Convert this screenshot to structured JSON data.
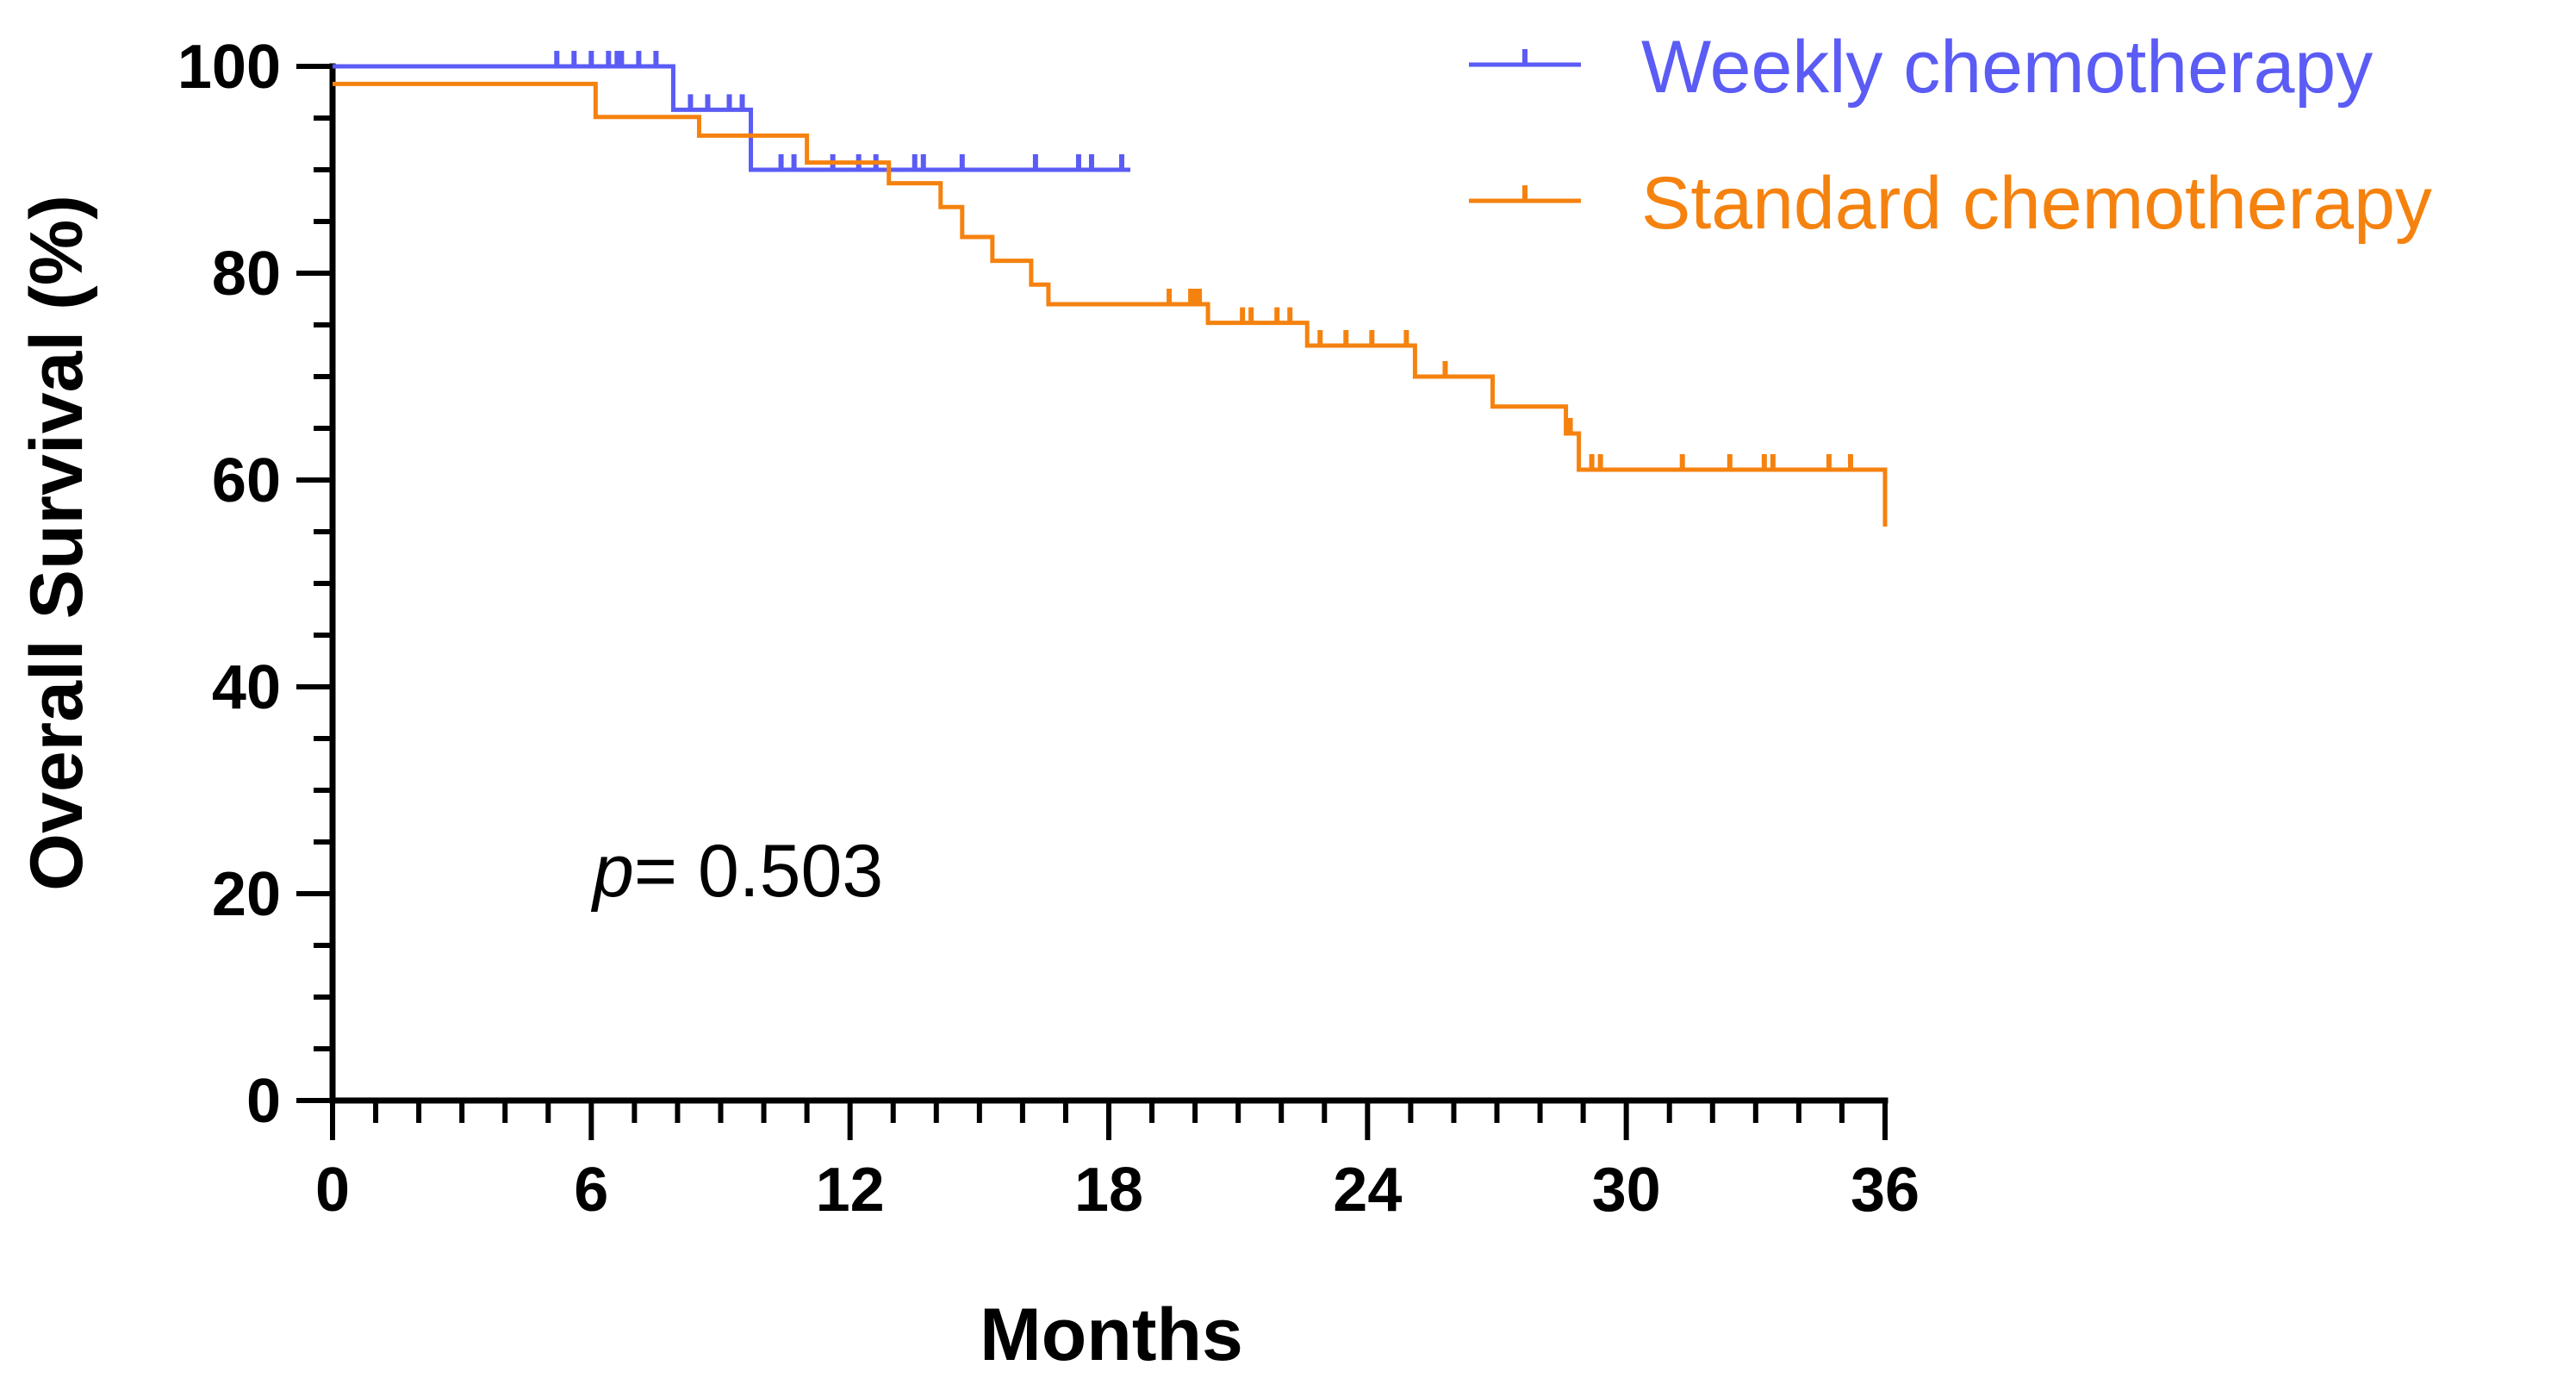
{
  "chart_data": {
    "type": "line",
    "subtype": "kaplan-meier",
    "xlabel": "Months",
    "ylabel": "Overall Survival (%)",
    "xlim": [
      0,
      36
    ],
    "ylim": [
      0,
      100
    ],
    "xticks": [
      0,
      6,
      12,
      18,
      24,
      30,
      36
    ],
    "yticks": [
      0,
      20,
      40,
      60,
      80,
      100
    ],
    "x_minor_step": 1,
    "y_minor_step": 5,
    "annotation": {
      "prefix": "p",
      "text": "= 0.503"
    },
    "legend_position": "top-right",
    "series": [
      {
        "name": "Weekly chemotherapy",
        "color": "#5B5BF5",
        "steps": [
          [
            0,
            100
          ],
          [
            7.9,
            95.8
          ],
          [
            9.7,
            90.0
          ]
        ],
        "end_x": 18.5,
        "censored": [
          [
            5.2,
            100
          ],
          [
            5.6,
            100
          ],
          [
            6.0,
            100
          ],
          [
            6.4,
            100
          ],
          [
            6.6,
            100
          ],
          [
            6.7,
            100
          ],
          [
            7.1,
            100
          ],
          [
            7.5,
            100
          ],
          [
            8.3,
            95.8
          ],
          [
            8.7,
            95.8
          ],
          [
            9.2,
            95.8
          ],
          [
            9.5,
            95.8
          ],
          [
            10.4,
            90.0
          ],
          [
            10.7,
            90.0
          ],
          [
            11.6,
            90.0
          ],
          [
            12.2,
            90.0
          ],
          [
            12.6,
            90.0
          ],
          [
            13.5,
            90.0
          ],
          [
            13.7,
            90.0
          ],
          [
            14.6,
            90.0
          ],
          [
            16.3,
            90.0
          ],
          [
            17.3,
            90.0
          ],
          [
            17.6,
            90.0
          ],
          [
            18.3,
            90.0
          ]
        ]
      },
      {
        "name": "Standard chemotherapy",
        "color": "#F5820F",
        "steps": [
          [
            0,
            98.3
          ],
          [
            6.1,
            95.1
          ],
          [
            8.5,
            93.3
          ],
          [
            11.0,
            90.7
          ],
          [
            12.9,
            88.7
          ],
          [
            14.1,
            86.4
          ],
          [
            14.6,
            83.5
          ],
          [
            15.3,
            81.2
          ],
          [
            16.2,
            78.9
          ],
          [
            16.6,
            77.0
          ],
          [
            20.3,
            75.2
          ],
          [
            22.6,
            73.0
          ],
          [
            25.1,
            70.0
          ],
          [
            26.9,
            67.1
          ],
          [
            28.6,
            64.5
          ],
          [
            28.9,
            61.0
          ],
          [
            36.0,
            55.5
          ]
        ],
        "end_x": 36.0,
        "censored": [
          [
            19.4,
            77.0
          ],
          [
            19.9,
            77.0
          ],
          [
            20.0,
            77.0
          ],
          [
            20.1,
            77.0
          ],
          [
            21.1,
            75.2
          ],
          [
            21.3,
            75.2
          ],
          [
            21.9,
            75.2
          ],
          [
            22.2,
            75.2
          ],
          [
            22.9,
            73.0
          ],
          [
            23.5,
            73.0
          ],
          [
            24.1,
            73.0
          ],
          [
            24.9,
            73.0
          ],
          [
            25.8,
            70.0
          ],
          [
            28.7,
            64.5
          ],
          [
            29.2,
            61.0
          ],
          [
            29.4,
            61.0
          ],
          [
            31.3,
            61.0
          ],
          [
            32.4,
            61.0
          ],
          [
            33.2,
            61.0
          ],
          [
            33.4,
            61.0
          ],
          [
            34.7,
            61.0
          ],
          [
            35.2,
            61.0
          ]
        ]
      }
    ]
  }
}
